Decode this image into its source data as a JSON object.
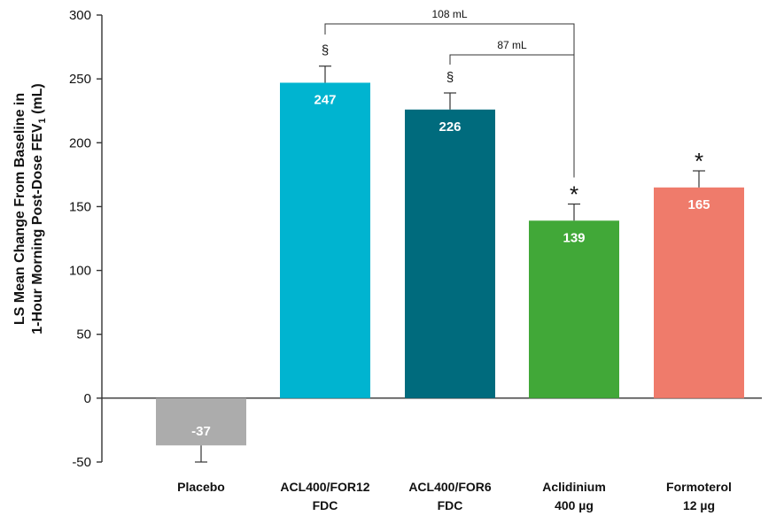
{
  "chart_data": {
    "type": "bar",
    "title": "",
    "ylabel_line1": "LS Mean Change From Baseline in",
    "ylabel_line2_prefix": "1-Hour Morning Post-Dose FEV",
    "ylabel_subscript": "1",
    "ylabel_suffix": " (mL)",
    "ylim": [
      -50,
      300
    ],
    "yticks": [
      -50,
      0,
      50,
      100,
      150,
      200,
      250,
      300
    ],
    "categories": [
      {
        "line1": "Placebo",
        "line2": ""
      },
      {
        "line1": "ACL400/FOR12",
        "line2": "FDC"
      },
      {
        "line1": "ACL400/FOR6",
        "line2": "FDC"
      },
      {
        "line1": "Aclidinium",
        "line2": "400 µg"
      },
      {
        "line1": "Formoterol",
        "line2": "12 µg"
      }
    ],
    "values": [
      -37,
      247,
      226,
      139,
      165
    ],
    "value_labels": [
      "-37",
      "247",
      "226",
      "139",
      "165"
    ],
    "error_bars": [
      -50,
      260,
      239,
      152,
      178
    ],
    "colors": [
      "#acacac",
      "#00b4d0",
      "#006b7d",
      "#41a838",
      "#ef7b6b"
    ],
    "markers": [
      "",
      "§",
      "§",
      "*",
      "*"
    ],
    "brackets": [
      {
        "label": "108 mL",
        "from": 1,
        "to": 3
      },
      {
        "label": "87 mL",
        "from": 2,
        "to": 3
      }
    ]
  }
}
